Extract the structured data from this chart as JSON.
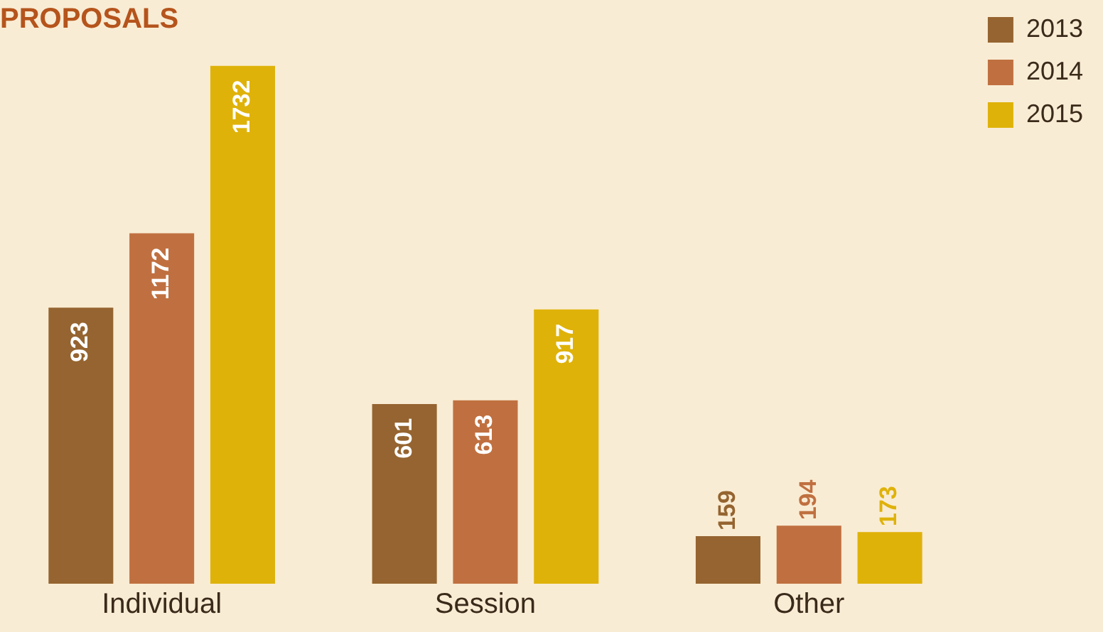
{
  "chart_data": {
    "type": "bar",
    "title": "PROPOSALS",
    "categories": [
      "Individual",
      "Session",
      "Other"
    ],
    "series": [
      {
        "name": "2013",
        "color": "#956430",
        "values": [
          923,
          601,
          159
        ]
      },
      {
        "name": "2014",
        "color": "#c07040",
        "values": [
          1172,
          613,
          194
        ]
      },
      {
        "name": "2015",
        "color": "#dfb20a",
        "values": [
          1732,
          917,
          173
        ]
      }
    ],
    "data_labels": true,
    "legend": "top right",
    "grid": false
  }
}
